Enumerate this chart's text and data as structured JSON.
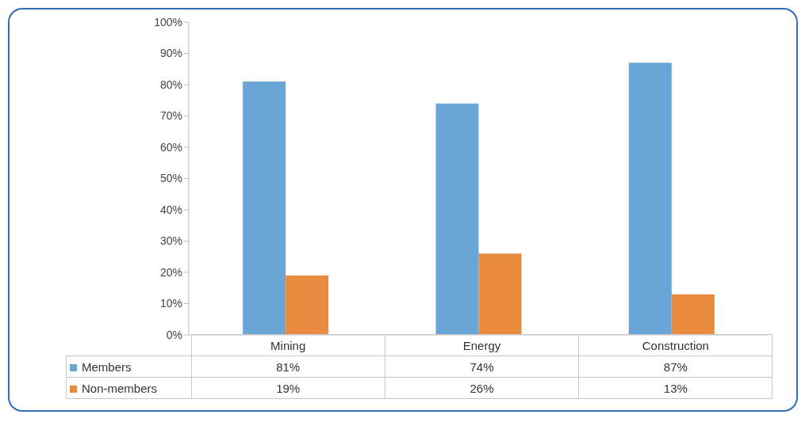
{
  "chart_data": {
    "type": "bar",
    "categories": [
      "Mining",
      "Energy",
      "Construction"
    ],
    "series": [
      {
        "name": "Members",
        "color": "#6aa5d7",
        "values": [
          81,
          74,
          87
        ],
        "value_labels": [
          "81%",
          "74%",
          "87%"
        ]
      },
      {
        "name": "Non-members",
        "color": "#e98b3e",
        "values": [
          19,
          26,
          13
        ],
        "value_labels": [
          "19%",
          "26%",
          "13%"
        ]
      }
    ],
    "ylim": [
      0,
      100
    ],
    "yticks": [
      {
        "value": 0,
        "label": "0%"
      },
      {
        "value": 10,
        "label": "10%"
      },
      {
        "value": 20,
        "label": "20%"
      },
      {
        "value": 30,
        "label": "30%"
      },
      {
        "value": 40,
        "label": "40%"
      },
      {
        "value": 50,
        "label": "50%"
      },
      {
        "value": 60,
        "label": "60%"
      },
      {
        "value": 70,
        "label": "70%"
      },
      {
        "value": 80,
        "label": "80%"
      },
      {
        "value": 90,
        "label": "90%"
      },
      {
        "value": 100,
        "label": "100%"
      }
    ],
    "grid": false,
    "legend": "bottom left"
  }
}
